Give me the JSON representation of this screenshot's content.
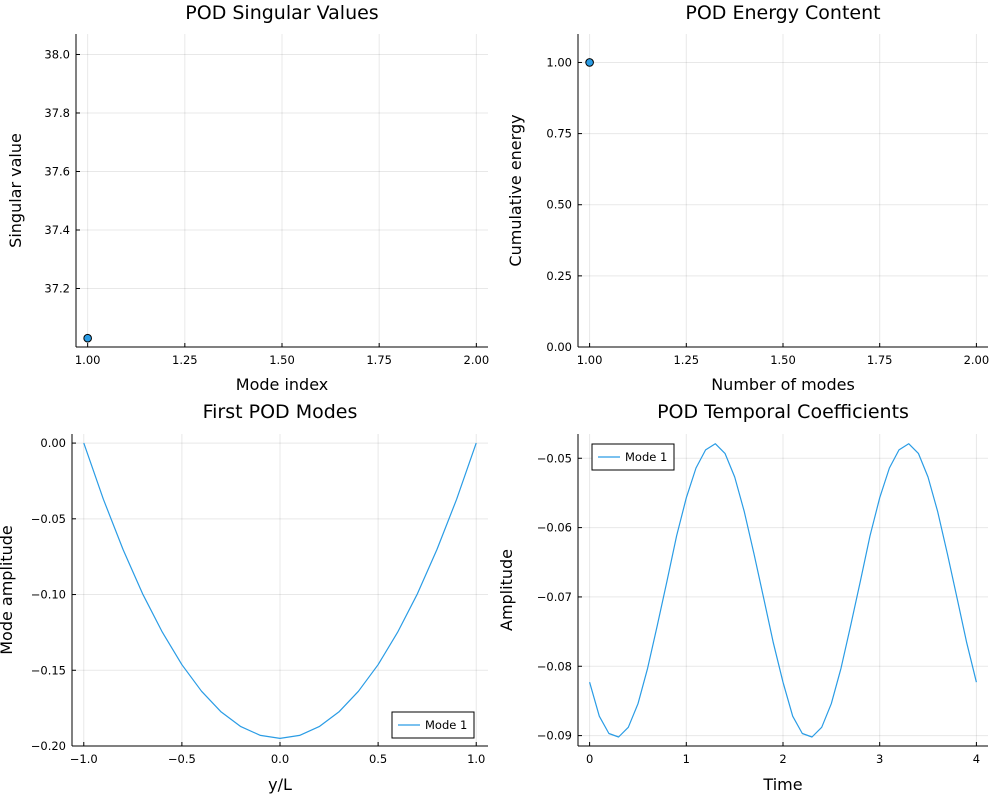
{
  "chart_data": [
    {
      "id": "singular",
      "type": "scatter",
      "title": "POD Singular Values",
      "xlabel": "Mode index",
      "ylabel": "Singular value",
      "xlim": [
        0.97,
        2.03
      ],
      "ylim": [
        37.0,
        38.07
      ],
      "xticks": [
        1.0,
        1.25,
        1.5,
        1.75,
        2.0
      ],
      "xtick_labels": [
        "1.00",
        "1.25",
        "1.50",
        "1.75",
        "2.00"
      ],
      "yticks": [
        37.2,
        37.4,
        37.6,
        37.8,
        38.0
      ],
      "ytick_labels": [
        "37.2",
        "37.4",
        "37.6",
        "37.8",
        "38.0"
      ],
      "grid": true,
      "series": [
        {
          "color": "#2a9ce5",
          "x": [
            1.0
          ],
          "y": [
            37.03
          ]
        }
      ]
    },
    {
      "id": "energy",
      "type": "scatter",
      "title": "POD Energy Content",
      "xlabel": "Number of modes",
      "ylabel": "Cumulative energy",
      "xlim": [
        0.97,
        2.03
      ],
      "ylim": [
        0.0,
        1.1
      ],
      "xticks": [
        1.0,
        1.25,
        1.5,
        1.75,
        2.0
      ],
      "xtick_labels": [
        "1.00",
        "1.25",
        "1.50",
        "1.75",
        "2.00"
      ],
      "yticks": [
        0.0,
        0.25,
        0.5,
        0.75,
        1.0
      ],
      "ytick_labels": [
        "0.00",
        "0.25",
        "0.50",
        "0.75",
        "1.00"
      ],
      "grid": true,
      "series": [
        {
          "color": "#2a9ce5",
          "x": [
            1.0
          ],
          "y": [
            1.0
          ]
        }
      ]
    },
    {
      "id": "modes",
      "type": "line",
      "title": "First POD Modes",
      "xlabel": "y/L",
      "ylabel": "Mode amplitude",
      "xlim": [
        -1.06,
        1.06
      ],
      "ylim": [
        -0.2,
        0.006
      ],
      "xticks": [
        -1.0,
        -0.5,
        0.0,
        0.5,
        1.0
      ],
      "xtick_labels": [
        "−1.0",
        "−0.5",
        "0.0",
        "0.5",
        "1.0"
      ],
      "yticks": [
        -0.2,
        -0.15,
        -0.1,
        -0.05,
        0.0
      ],
      "ytick_labels": [
        "−0.20",
        "−0.15",
        "−0.10",
        "−0.05",
        "0.00"
      ],
      "grid": true,
      "legend": "bottom-right",
      "series": [
        {
          "name": "Mode 1",
          "color": "#2a9ce5",
          "x": [
            -1.0,
            -0.9,
            -0.8,
            -0.7,
            -0.6,
            -0.5,
            -0.4,
            -0.3,
            -0.2,
            -0.1,
            0.0,
            0.1,
            0.2,
            0.3,
            0.4,
            0.5,
            0.6,
            0.7,
            0.8,
            0.9,
            1.0
          ],
          "y": [
            0.0,
            -0.0371,
            -0.0702,
            -0.0995,
            -0.1248,
            -0.1463,
            -0.1638,
            -0.1775,
            -0.1872,
            -0.193,
            -0.195,
            -0.193,
            -0.1872,
            -0.1775,
            -0.1638,
            -0.1463,
            -0.1248,
            -0.0995,
            -0.0702,
            -0.0371,
            0.0
          ]
        }
      ]
    },
    {
      "id": "temporal",
      "type": "line",
      "title": "POD Temporal Coefficients",
      "xlabel": "Time",
      "ylabel": "Amplitude",
      "xlim": [
        -0.12,
        4.12
      ],
      "ylim": [
        -0.0915,
        -0.0465
      ],
      "xticks": [
        0,
        1,
        2,
        3,
        4
      ],
      "xtick_labels": [
        "0",
        "1",
        "2",
        "3",
        "4"
      ],
      "yticks": [
        -0.09,
        -0.08,
        -0.07,
        -0.06,
        -0.05
      ],
      "ytick_labels": [
        "−0.09",
        "−0.08",
        "−0.07",
        "−0.06",
        "−0.05"
      ],
      "grid": true,
      "legend": "top-left",
      "series": [
        {
          "name": "Mode 1",
          "color": "#2a9ce5",
          "x": [
            0.0,
            0.1,
            0.2,
            0.3,
            0.4,
            0.5,
            0.6,
            0.7,
            0.8,
            0.9,
            1.0,
            1.1,
            1.2,
            1.3,
            1.4,
            1.5,
            1.6,
            1.7,
            1.8,
            1.9,
            2.0,
            2.1,
            2.2,
            2.3,
            2.4,
            2.5,
            2.6,
            2.7,
            2.8,
            2.9,
            3.0,
            3.1,
            3.2,
            3.3,
            3.4,
            3.5,
            3.6,
            3.7,
            3.8,
            3.9,
            4.0
          ],
          "y": [
            -0.0823,
            -0.0872,
            -0.0897,
            -0.0902,
            -0.0888,
            -0.0854,
            -0.0803,
            -0.0741,
            -0.0677,
            -0.0612,
            -0.0557,
            -0.0514,
            -0.0488,
            -0.0479,
            -0.0493,
            -0.0527,
            -0.0577,
            -0.0638,
            -0.0702,
            -0.0766,
            -0.0823,
            -0.0872,
            -0.0897,
            -0.0902,
            -0.0888,
            -0.0854,
            -0.0803,
            -0.0741,
            -0.0677,
            -0.0612,
            -0.0557,
            -0.0514,
            -0.0488,
            -0.0479,
            -0.0493,
            -0.0527,
            -0.0577,
            -0.0638,
            -0.0702,
            -0.0766,
            -0.0823
          ]
        }
      ]
    }
  ]
}
